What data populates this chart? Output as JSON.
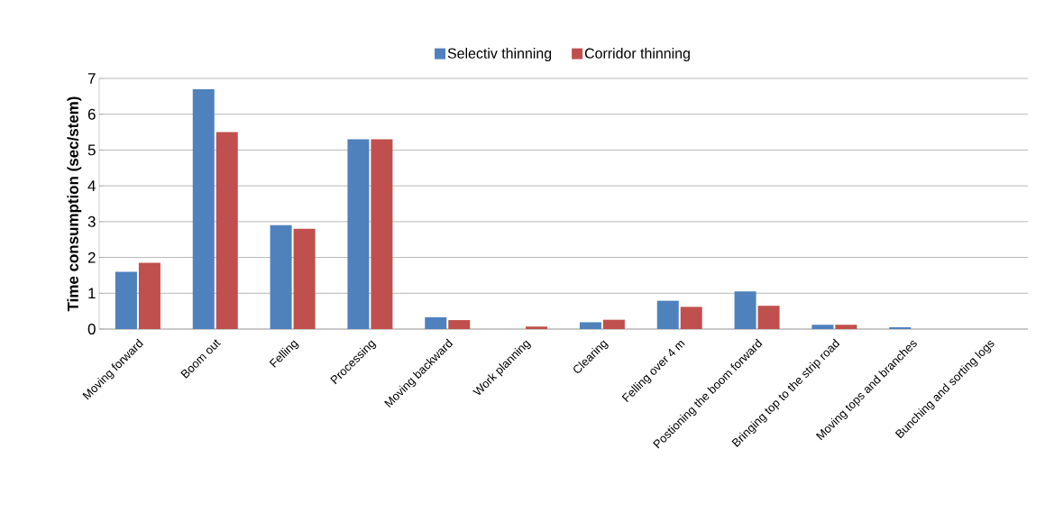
{
  "chart_data": {
    "type": "bar",
    "ylabel": "Time consumption (sec/stem)",
    "categories": [
      "Moving forward",
      "Boom out",
      "Felling",
      "Processing",
      "Moving backward",
      "Work planning",
      "Clearing",
      "Felling over 4 m",
      "Postioning the boom forward",
      "Bringing top to the strip road",
      "Moving tops and branches",
      "Bunching and sorting logs"
    ],
    "series": [
      {
        "name": "Selectiv thinning",
        "color": "#4f81bd",
        "values": [
          1.6,
          6.7,
          2.9,
          5.3,
          0.33,
          0,
          0.19,
          0.79,
          1.05,
          0.12,
          0.05,
          0
        ]
      },
      {
        "name": "Corridor thinning",
        "color": "#c0504d",
        "values": [
          1.85,
          5.5,
          2.8,
          5.3,
          0.25,
          0.07,
          0.26,
          0.62,
          0.65,
          0.12,
          0,
          0
        ]
      }
    ],
    "ylim": [
      0,
      7
    ],
    "yticks": [
      0,
      1,
      2,
      3,
      4,
      5,
      6,
      7
    ],
    "grid": "y",
    "legend": "top"
  }
}
